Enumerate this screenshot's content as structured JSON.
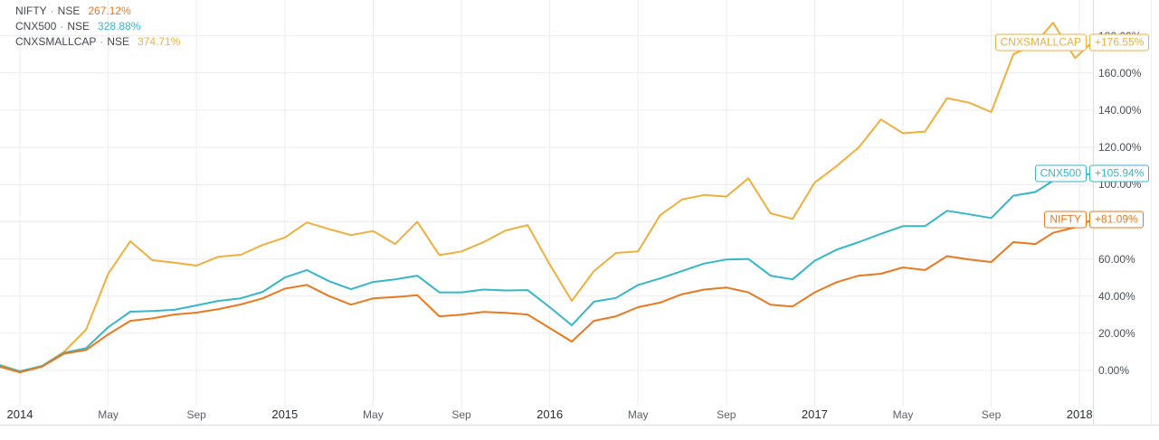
{
  "chart_data": {
    "type": "line",
    "description": "Percent-change comparison of three NSE indices, Jan 2014 - Jan 2018",
    "grid": true,
    "legend_position": "top-left",
    "y_axis": {
      "side": "right",
      "min": 0,
      "max": 180,
      "tick_step": 20,
      "ticks": [
        {
          "value": 180,
          "label": "180.00%"
        },
        {
          "value": 160,
          "label": "160.00%"
        },
        {
          "value": 140,
          "label": "140.00%"
        },
        {
          "value": 120,
          "label": "120.00%"
        },
        {
          "value": 100,
          "label": "100.00%"
        },
        {
          "value": 80,
          "label": "80.00%"
        },
        {
          "value": 60,
          "label": "60.00%"
        },
        {
          "value": 40,
          "label": "40.00%"
        },
        {
          "value": 20,
          "label": "20.00%"
        },
        {
          "value": 0,
          "label": "0.00%"
        }
      ]
    },
    "x_axis": {
      "unit": "months-since-2014-01",
      "ticks": [
        {
          "label": "2014",
          "m": 0,
          "type": "year"
        },
        {
          "label": "May",
          "m": 4,
          "type": "month"
        },
        {
          "label": "Sep",
          "m": 8,
          "type": "month"
        },
        {
          "label": "2015",
          "m": 12,
          "type": "year"
        },
        {
          "label": "May",
          "m": 16,
          "type": "month"
        },
        {
          "label": "Sep",
          "m": 20,
          "type": "month"
        },
        {
          "label": "2016",
          "m": 24,
          "type": "year"
        },
        {
          "label": "May",
          "m": 28,
          "type": "month"
        },
        {
          "label": "Sep",
          "m": 32,
          "type": "month"
        },
        {
          "label": "2017",
          "m": 36,
          "type": "year"
        },
        {
          "label": "May",
          "m": 40,
          "type": "month"
        },
        {
          "label": "Sep",
          "m": 44,
          "type": "month"
        },
        {
          "label": "2018",
          "m": 48,
          "type": "year"
        }
      ]
    },
    "series": [
      {
        "id": "cnxsmallcap",
        "name": "CNXSMALLCAP",
        "exchange": "NSE",
        "separator": "·",
        "legend_change": "374.71%",
        "tag_label": "CNXSMALLCAP",
        "last_change_label": "+176.55%",
        "last_value": 176.55,
        "color": "#F0AF3C",
        "points": [
          [
            -0.9,
            3
          ],
          [
            0,
            -0.5
          ],
          [
            1,
            2.4
          ],
          [
            2,
            10
          ],
          [
            3,
            22
          ],
          [
            4,
            52
          ],
          [
            5,
            69.5
          ],
          [
            6,
            59.3
          ],
          [
            7,
            58
          ],
          [
            8,
            56.4
          ],
          [
            9,
            61.2
          ],
          [
            10,
            62.2
          ],
          [
            11,
            67.5
          ],
          [
            12,
            71.5
          ],
          [
            13,
            79.6
          ],
          [
            14,
            76
          ],
          [
            15,
            72.8
          ],
          [
            16,
            75
          ],
          [
            17,
            68
          ],
          [
            18,
            80
          ],
          [
            19,
            62
          ],
          [
            20,
            64
          ],
          [
            21,
            69
          ],
          [
            22,
            75.3
          ],
          [
            23,
            78.2
          ],
          [
            24,
            57
          ],
          [
            25,
            37.4
          ],
          [
            26,
            53.4
          ],
          [
            27,
            63.2
          ],
          [
            28,
            64
          ],
          [
            29,
            83.5
          ],
          [
            30,
            92
          ],
          [
            31,
            94.4
          ],
          [
            32,
            93.5
          ],
          [
            33,
            103.4
          ],
          [
            34,
            84.5
          ],
          [
            35,
            81.5
          ],
          [
            36,
            101
          ],
          [
            37,
            110
          ],
          [
            38,
            120
          ],
          [
            39,
            135
          ],
          [
            40,
            127.6
          ],
          [
            41,
            128.5
          ],
          [
            42,
            146.5
          ],
          [
            43,
            144
          ],
          [
            44,
            139
          ],
          [
            45,
            170
          ],
          [
            46,
            176
          ],
          [
            46.8,
            187
          ],
          [
            47.8,
            168
          ],
          [
            48.57,
            176.55
          ]
        ]
      },
      {
        "id": "cnx500",
        "name": "CNX500",
        "exchange": "NSE",
        "separator": "·",
        "legend_change": "328.88%",
        "tag_label": "CNX500",
        "last_change_label": "+105.94%",
        "last_value": 105.94,
        "color": "#35B6C9",
        "points": [
          [
            -0.9,
            2.5
          ],
          [
            0,
            -0.5
          ],
          [
            1,
            2.4
          ],
          [
            2,
            9.5
          ],
          [
            3,
            12
          ],
          [
            4,
            23.3
          ],
          [
            5,
            31.6
          ],
          [
            6,
            32
          ],
          [
            7,
            32.6
          ],
          [
            8,
            35
          ],
          [
            9,
            37.4
          ],
          [
            10,
            38.8
          ],
          [
            11,
            42.3
          ],
          [
            12,
            50
          ],
          [
            13,
            54
          ],
          [
            14,
            48
          ],
          [
            15,
            43.7
          ],
          [
            16,
            47.6
          ],
          [
            17,
            49
          ],
          [
            18,
            51
          ],
          [
            19,
            42
          ],
          [
            20,
            42
          ],
          [
            21,
            43.5
          ],
          [
            22,
            43
          ],
          [
            23,
            43.2
          ],
          [
            24,
            34
          ],
          [
            25,
            24.3
          ],
          [
            26,
            37
          ],
          [
            27,
            39
          ],
          [
            28,
            46
          ],
          [
            29,
            49.5
          ],
          [
            30,
            53.5
          ],
          [
            31,
            57.5
          ],
          [
            32,
            59.7
          ],
          [
            33,
            60
          ],
          [
            34,
            51
          ],
          [
            35,
            49
          ],
          [
            36,
            59
          ],
          [
            37,
            65
          ],
          [
            38,
            69
          ],
          [
            39,
            73.5
          ],
          [
            40,
            77.6
          ],
          [
            41,
            77.6
          ],
          [
            42,
            85.9
          ],
          [
            43,
            84
          ],
          [
            44,
            82
          ],
          [
            45,
            94
          ],
          [
            46,
            96
          ],
          [
            46.8,
            102
          ],
          [
            48.57,
            105.94
          ]
        ]
      },
      {
        "id": "nifty",
        "name": "NIFTY",
        "exchange": "NSE",
        "separator": "·",
        "legend_change": "267.12%",
        "tag_label": "NIFTY",
        "last_change_label": "+81.09%",
        "last_value": 81.09,
        "color": "#E8791E",
        "points": [
          [
            -0.9,
            2
          ],
          [
            0,
            -1
          ],
          [
            1,
            2
          ],
          [
            2,
            9
          ],
          [
            3,
            11
          ],
          [
            4,
            19.4
          ],
          [
            5,
            26.7
          ],
          [
            6,
            28
          ],
          [
            7,
            30.1
          ],
          [
            8,
            31.1
          ],
          [
            9,
            33
          ],
          [
            10,
            35.5
          ],
          [
            11,
            38.8
          ],
          [
            12,
            44
          ],
          [
            13,
            46
          ],
          [
            14,
            40
          ],
          [
            15,
            35.4
          ],
          [
            16,
            38.8
          ],
          [
            17,
            39.5
          ],
          [
            18,
            40.5
          ],
          [
            19,
            29.1
          ],
          [
            20,
            30
          ],
          [
            21,
            31.5
          ],
          [
            22,
            31
          ],
          [
            23,
            30.1
          ],
          [
            24,
            22.8
          ],
          [
            25,
            15.5
          ],
          [
            26,
            26.7
          ],
          [
            27,
            29.1
          ],
          [
            28,
            34
          ],
          [
            29,
            36.5
          ],
          [
            30,
            41
          ],
          [
            31,
            43.5
          ],
          [
            32,
            44.6
          ],
          [
            33,
            42
          ],
          [
            34,
            35.4
          ],
          [
            35,
            34.4
          ],
          [
            36,
            42
          ],
          [
            37,
            47.5
          ],
          [
            38,
            51
          ],
          [
            39,
            52
          ],
          [
            40,
            55.4
          ],
          [
            41,
            54
          ],
          [
            42,
            61.5
          ],
          [
            43,
            59.7
          ],
          [
            44,
            58.3
          ],
          [
            45,
            69
          ],
          [
            46,
            68
          ],
          [
            46.8,
            74
          ],
          [
            47.8,
            77
          ],
          [
            48.57,
            81.09
          ]
        ]
      }
    ],
    "colors": {
      "grid": "#ECECEE",
      "axis_separator": "#DDDEE2",
      "panel_edge": "#EEEEF0",
      "legend_text": "#45484f",
      "y_label": "#4a4e59",
      "x_month_label": "#5d616b",
      "x_year_label": "#2a2e39",
      "background": "#FFFFFF"
    }
  }
}
